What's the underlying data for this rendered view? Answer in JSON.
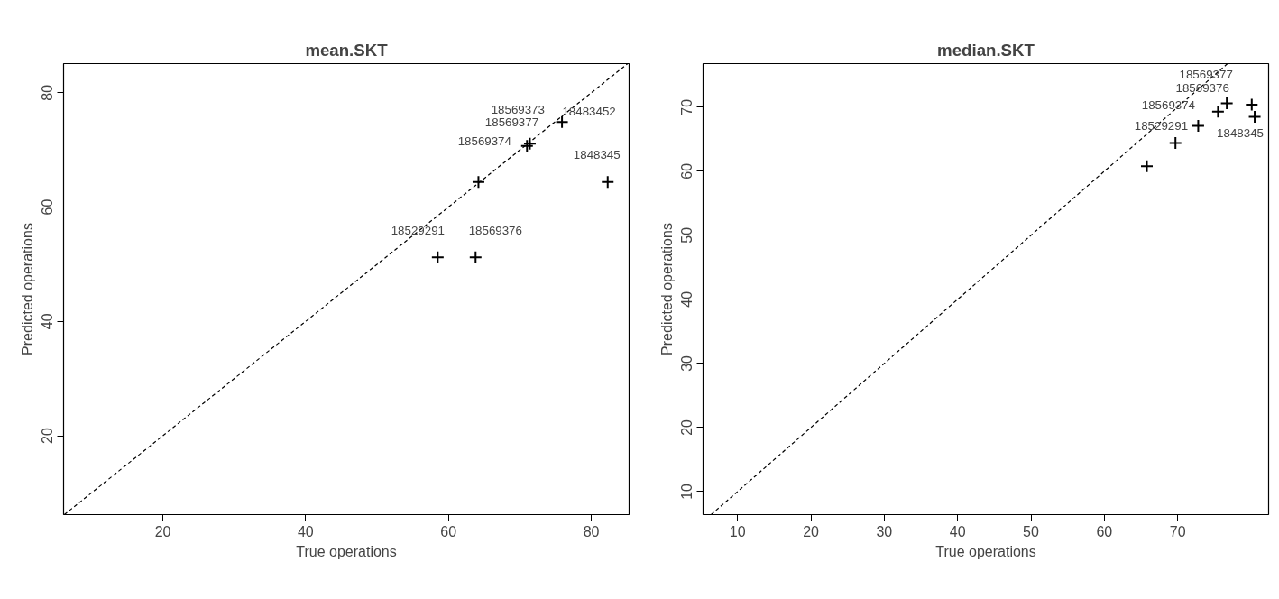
{
  "chart_data": [
    {
      "type": "scatter",
      "title": "mean.SKT",
      "xlabel": "True operations",
      "ylabel": "Predicted operations",
      "xlim": [
        6.1,
        85.3
      ],
      "ylim": [
        6.2,
        85.1
      ],
      "xticks": [
        20,
        40,
        60,
        80
      ],
      "yticks": [
        20,
        40,
        60,
        80
      ],
      "grid": false,
      "series": [
        {
          "marker": "cross",
          "color": "#000000",
          "x": [
            58.5,
            63.8,
            64.2,
            82.3,
            71.0,
            71.4,
            75.9
          ],
          "values": [
            51.2,
            51.2,
            64.4,
            64.4,
            70.7,
            71.1,
            74.9
          ]
        },
        {
          "type": "line",
          "line_style": "dashed",
          "color": "#000000",
          "x": [
            6.2,
            85.1
          ],
          "values": [
            6.2,
            85.1
          ]
        }
      ],
      "annotations": [
        {
          "text": "18483452",
          "x": 75.9,
          "y": 74.9
        },
        {
          "text": "18569377",
          "x": 71.4,
          "y": 71.1
        },
        {
          "text": "18569373",
          "x": 71.0,
          "y": 70.7
        },
        {
          "text": "18569374",
          "x": 71.0,
          "y": 70.7
        },
        {
          "text": "1848345",
          "x": 82.3,
          "y": 64.4
        },
        {
          "text": "18529291",
          "x": 58.5,
          "y": 51.2
        },
        {
          "text": "18569376",
          "x": 63.8,
          "y": 51.2
        }
      ]
    },
    {
      "type": "scatter",
      "title": "median.SKT",
      "xlabel": "True operations",
      "ylabel": "Predicted operations",
      "xlim": [
        5.3,
        82.4
      ],
      "ylim": [
        6.4,
        76.8
      ],
      "xticks": [
        10,
        20,
        30,
        40,
        50,
        60,
        70
      ],
      "yticks": [
        10,
        20,
        30,
        40,
        50,
        60,
        70
      ],
      "grid": false,
      "series": [
        {
          "marker": "cross",
          "color": "#000000",
          "x": [
            65.8,
            69.7,
            72.8,
            75.5,
            76.7,
            80.1,
            80.5
          ],
          "values": [
            60.8,
            64.4,
            67.1,
            69.3,
            70.6,
            70.4,
            68.5
          ]
        },
        {
          "type": "line",
          "line_style": "dashed",
          "color": "#000000",
          "x": [
            6.4,
            76.8
          ],
          "values": [
            6.4,
            76.8
          ]
        }
      ],
      "annotations": [
        {
          "text": "18569377",
          "x": 76.7,
          "y": 70.6
        },
        {
          "text": "1848345",
          "x": 80.5,
          "y": 68.5
        },
        {
          "text": "18569376",
          "x": 76.7,
          "y": 70.6
        },
        {
          "text": "18569374",
          "x": 75.5,
          "y": 69.3
        },
        {
          "text": "18529291",
          "x": 72.8,
          "y": 67.1
        }
      ]
    }
  ]
}
